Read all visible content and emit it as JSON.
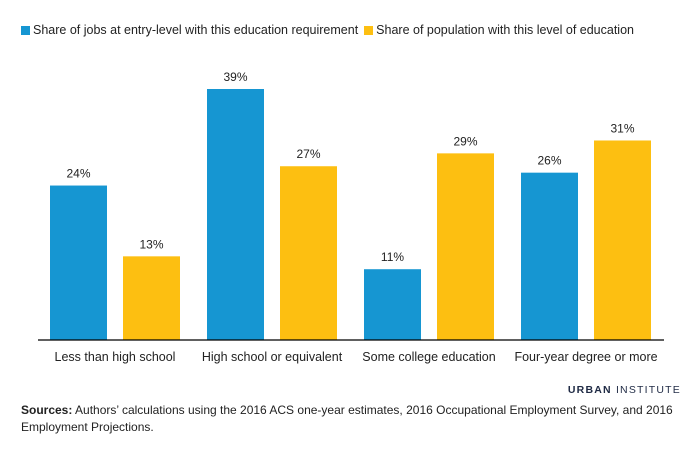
{
  "colors": {
    "series1": "#1696d2",
    "series2": "#fdbf11",
    "axis": "#000000"
  },
  "chart_data": {
    "type": "bar",
    "categories": [
      "Less than high school",
      "High school or equivalent",
      "Some college education",
      "Four-year degree or more"
    ],
    "series": [
      {
        "name": "Share of jobs at entry-level with this education requirement",
        "values": [
          24,
          39,
          11,
          26
        ],
        "labels": [
          "24%",
          "39%",
          "11%",
          "26%"
        ]
      },
      {
        "name": "Share of population with this level of education",
        "values": [
          13,
          27,
          29,
          31
        ],
        "labels": [
          "13%",
          "27%",
          "29%",
          "31%"
        ]
      }
    ],
    "ylim": [
      0,
      39
    ],
    "grid": false,
    "legend_position": "top-left"
  },
  "branding": {
    "bold": "URBAN",
    "light": "INSTITUTE"
  },
  "source": {
    "label": "Sources:",
    "text": " Authors’ calculations using the 2016 ACS one-year estimates, 2016 Occupational Employment Survey, and 2016 Employment Projections."
  }
}
